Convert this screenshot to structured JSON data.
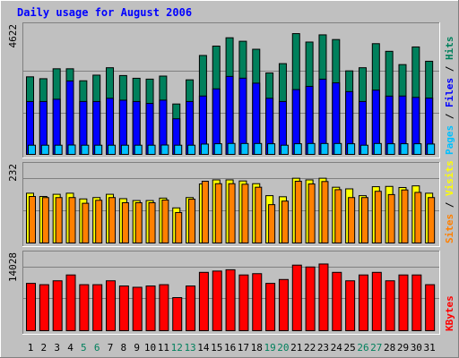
{
  "title": "Daily usage for August 2006",
  "colors": {
    "hits": "#00805c",
    "files": "#0000ff",
    "pages": "#00c0ff",
    "visits": "#ffff00",
    "sites": "#ff8000",
    "kbytes": "#ff0000",
    "weekend_label": "#00805c",
    "weekday_label": "#000000",
    "title": "#0000ff"
  },
  "chart_data": [
    {
      "type": "bar",
      "name": "hits-files-pages",
      "categories": [
        "1",
        "2",
        "3",
        "4",
        "5",
        "6",
        "7",
        "8",
        "9",
        "10",
        "11",
        "12",
        "13",
        "14",
        "15",
        "16",
        "17",
        "18",
        "19",
        "20",
        "21",
        "22",
        "23",
        "24",
        "25",
        "26",
        "27",
        "28",
        "29",
        "30",
        "31"
      ],
      "weekend_days": [
        "5",
        "6",
        "12",
        "13",
        "19",
        "20",
        "26",
        "27"
      ],
      "ymax_label": "4622",
      "ymax": 4622,
      "series": [
        {
          "name": "Hits",
          "values": [
            3275,
            3196,
            3615,
            3615,
            3108,
            3346,
            3659,
            3329,
            3214,
            3178,
            3306,
            2128,
            3148,
            4176,
            4572,
            4924,
            4776,
            4439,
            3438,
            3832,
            5099,
            4743,
            5047,
            4849,
            3527,
            3659,
            4675,
            4352,
            3791,
            4536,
            3932
          ]
        },
        {
          "name": "Files",
          "values": [
            2232,
            2232,
            2328,
            3100,
            2233,
            2232,
            2368,
            2288,
            2232,
            2152,
            2290,
            1504,
            2232,
            2464,
            2766,
            3292,
            3218,
            3007,
            2368,
            2232,
            2736,
            2872,
            3176,
            3020,
            2650,
            2232,
            2712,
            2460,
            2464,
            2406,
            2376
          ]
        },
        {
          "name": "Pages",
          "values": [
            388,
            388,
            388,
            396,
            388,
            388,
            388,
            388,
            388,
            388,
            396,
            388,
            388,
            436,
            450,
            462,
            460,
            460,
            449,
            388,
            450,
            460,
            460,
            460,
            449,
            388,
            460,
            449,
            450,
            449,
            438
          ]
        }
      ],
      "legend": [
        "Pages",
        "Files",
        "Hits"
      ]
    },
    {
      "type": "bar",
      "name": "visits-sites",
      "categories": [
        "1",
        "2",
        "3",
        "4",
        "5",
        "6",
        "7",
        "8",
        "9",
        "10",
        "11",
        "12",
        "13",
        "14",
        "15",
        "16",
        "17",
        "18",
        "19",
        "20",
        "21",
        "22",
        "23",
        "24",
        "25",
        "26",
        "27",
        "28",
        "29",
        "30",
        "31"
      ],
      "ymax_label": "232",
      "ymax": 232,
      "series": [
        {
          "name": "Visits",
          "values": [
            183,
            171,
            179,
            183,
            162,
            167,
            179,
            163,
            156,
            156,
            165,
            129,
            167,
            217,
            232,
            232,
            228,
            218,
            174,
            170,
            238,
            232,
            238,
            205,
            199,
            174,
            207,
            208,
            204,
            210,
            183
          ]
        },
        {
          "name": "Sites",
          "values": [
            171,
            167,
            167,
            167,
            146,
            157,
            167,
            148,
            148,
            148,
            158,
            112,
            161,
            227,
            218,
            218,
            216,
            205,
            141,
            154,
            227,
            217,
            226,
            196,
            167,
            167,
            190,
            178,
            195,
            186,
            167
          ]
        }
      ],
      "legend": [
        "Sites",
        "Visits"
      ]
    },
    {
      "type": "bar",
      "name": "kbytes",
      "categories": [
        "1",
        "2",
        "3",
        "4",
        "5",
        "6",
        "7",
        "8",
        "9",
        "10",
        "11",
        "12",
        "13",
        "14",
        "15",
        "16",
        "17",
        "18",
        "19",
        "20",
        "21",
        "22",
        "23",
        "24",
        "25",
        "26",
        "27",
        "28",
        "29",
        "30",
        "31"
      ],
      "ymax_label": "14028",
      "ymax": 14028,
      "series": [
        {
          "name": "KBytes",
          "values": [
            10650,
            10357,
            11233,
            12545,
            10357,
            10357,
            11233,
            10065,
            9773,
            10065,
            10357,
            7449,
            10065,
            13130,
            13423,
            13715,
            12545,
            12838,
            10650,
            11523,
            14757,
            14340,
            15012,
            13130,
            11233,
            12545,
            13130,
            11233,
            12545,
            12545,
            10357
          ]
        }
      ],
      "legend": [
        "KBytes"
      ]
    }
  ]
}
